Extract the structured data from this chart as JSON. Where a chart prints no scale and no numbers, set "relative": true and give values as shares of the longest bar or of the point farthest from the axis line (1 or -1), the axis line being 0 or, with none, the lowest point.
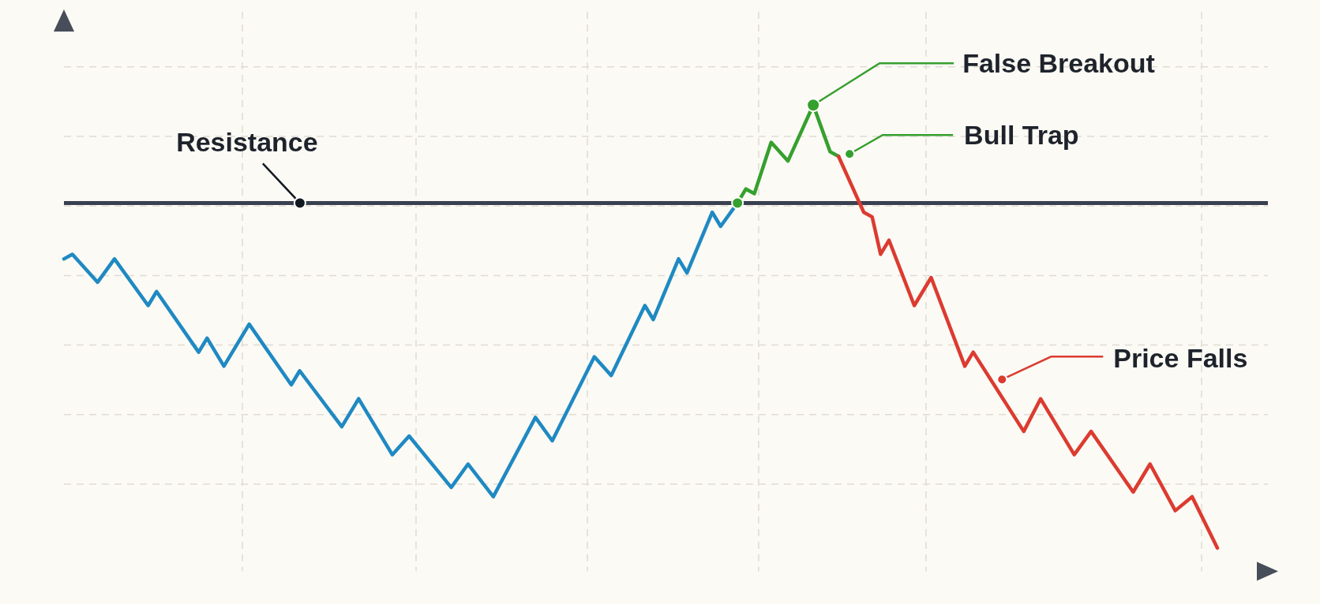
{
  "chart_data": {
    "type": "line",
    "relative": true,
    "categories": [
      null,
      null,
      null,
      null,
      null,
      null,
      null,
      null,
      null,
      null,
      null,
      null,
      null,
      null,
      null,
      null,
      null,
      null,
      null,
      null,
      null,
      null,
      null,
      null,
      null,
      null,
      null,
      null,
      null,
      null,
      null,
      null,
      null,
      null,
      null,
      null,
      null,
      null,
      null,
      null,
      null,
      null,
      null,
      null,
      null,
      null,
      null,
      null,
      null,
      null,
      null,
      null,
      null,
      null,
      null,
      null,
      null,
      null,
      null,
      null,
      null,
      null,
      null,
      null,
      null,
      null,
      null,
      null,
      null,
      null,
      null,
      null,
      null,
      null,
      null,
      null,
      null,
      null,
      null,
      null,
      null,
      null,
      null,
      null,
      null,
      null,
      null,
      null,
      null,
      null,
      null,
      null,
      null,
      null,
      null,
      null,
      null,
      null,
      null,
      null,
      null,
      null,
      null,
      null,
      null,
      null,
      null,
      null,
      null,
      null,
      null,
      null,
      null,
      null,
      null,
      null,
      null,
      null,
      null,
      null,
      null,
      null,
      null,
      null,
      null,
      null,
      null,
      null,
      null,
      null,
      null,
      null,
      null,
      null,
      null,
      null,
      null,
      null,
      null,
      null,
      null,
      null,
      null,
      null
    ],
    "series": [
      {
        "color": "#1f89c2",
        "values": [
          0.67,
          0.68,
          null,
          null,
          0.62,
          null,
          0.67,
          null,
          null,
          null,
          0.57,
          0.6,
          null,
          null,
          null,
          null,
          0.47,
          0.5,
          null,
          0.44,
          null,
          null,
          0.53,
          null,
          null,
          null,
          null,
          0.4,
          0.43,
          null,
          null,
          null,
          null,
          0.31,
          null,
          0.37,
          null,
          null,
          null,
          0.25,
          null,
          0.29,
          null,
          null,
          null,
          null,
          0.18,
          null,
          0.23,
          null,
          null,
          0.16,
          null,
          null,
          null,
          null,
          0.33,
          null,
          0.28,
          null,
          null,
          null,
          null,
          0.46,
          null,
          0.42,
          null,
          null,
          null,
          0.57,
          0.54,
          null,
          null,
          0.67,
          0.64,
          null,
          null,
          0.77,
          0.74,
          null,
          0.79,
          null,
          null,
          null,
          null,
          null,
          null,
          null,
          null,
          null,
          null,
          null,
          null,
          null,
          null,
          null,
          null,
          null,
          null,
          null,
          null,
          null,
          null,
          null,
          null,
          null,
          null,
          null,
          null,
          null,
          null,
          null,
          null,
          null,
          null,
          null,
          null,
          null,
          null,
          null,
          null,
          null,
          null,
          null,
          null,
          null,
          null,
          null,
          null,
          null,
          null,
          null,
          null,
          null,
          null,
          null,
          null,
          null,
          null,
          null,
          null,
          null,
          null,
          null
        ]
      },
      {
        "color": "#36a02e",
        "values": [
          null,
          null,
          null,
          null,
          null,
          null,
          null,
          null,
          null,
          null,
          null,
          null,
          null,
          null,
          null,
          null,
          null,
          null,
          null,
          null,
          null,
          null,
          null,
          null,
          null,
          null,
          null,
          null,
          null,
          null,
          null,
          null,
          null,
          null,
          null,
          null,
          null,
          null,
          null,
          null,
          null,
          null,
          null,
          null,
          null,
          null,
          null,
          null,
          null,
          null,
          null,
          null,
          null,
          null,
          null,
          null,
          null,
          null,
          null,
          null,
          null,
          null,
          null,
          null,
          null,
          null,
          null,
          null,
          null,
          null,
          null,
          null,
          null,
          null,
          null,
          null,
          null,
          null,
          null,
          null,
          0.79,
          0.82,
          0.81,
          null,
          0.92,
          null,
          0.88,
          null,
          null,
          1.0,
          null,
          0.9,
          0.89,
          null,
          null,
          null,
          null,
          null,
          null,
          null,
          null,
          null,
          null,
          null,
          null,
          null,
          null,
          null,
          null,
          null,
          null,
          null,
          null,
          null,
          null,
          null,
          null,
          null,
          null,
          null,
          null,
          null,
          null,
          null,
          null,
          null,
          null,
          null,
          null,
          null,
          null,
          null,
          null,
          null,
          null,
          null,
          null,
          null,
          null,
          null,
          null,
          null,
          null,
          null
        ]
      },
      {
        "color": "#dc3b30",
        "values": [
          null,
          null,
          null,
          null,
          null,
          null,
          null,
          null,
          null,
          null,
          null,
          null,
          null,
          null,
          null,
          null,
          null,
          null,
          null,
          null,
          null,
          null,
          null,
          null,
          null,
          null,
          null,
          null,
          null,
          null,
          null,
          null,
          null,
          null,
          null,
          null,
          null,
          null,
          null,
          null,
          null,
          null,
          null,
          null,
          null,
          null,
          null,
          null,
          null,
          null,
          null,
          null,
          null,
          null,
          null,
          null,
          null,
          null,
          null,
          null,
          null,
          null,
          null,
          null,
          null,
          null,
          null,
          null,
          null,
          null,
          null,
          null,
          null,
          null,
          null,
          null,
          null,
          null,
          null,
          null,
          null,
          null,
          null,
          null,
          null,
          null,
          null,
          null,
          null,
          null,
          null,
          null,
          0.89,
          null,
          null,
          0.77,
          0.76,
          0.68,
          0.71,
          null,
          null,
          0.57,
          null,
          0.63,
          null,
          null,
          null,
          0.44,
          0.47,
          null,
          null,
          null,
          null,
          null,
          0.3,
          null,
          0.37,
          null,
          null,
          null,
          0.25,
          null,
          0.3,
          null,
          null,
          null,
          null,
          0.17,
          null,
          0.23,
          null,
          null,
          0.13,
          null,
          0.16,
          null,
          null,
          0.05,
          null,
          null,
          null,
          null,
          null,
          null
        ]
      }
    ],
    "ref_lines": [
      {
        "axis": "y",
        "value": 0.79,
        "label": "Resistance",
        "color": "#394050"
      }
    ],
    "annotations": [
      "False Breakout",
      "Bull Trap",
      "Price Falls"
    ],
    "grid": true,
    "marker": "none",
    "line_style": "solid"
  }
}
